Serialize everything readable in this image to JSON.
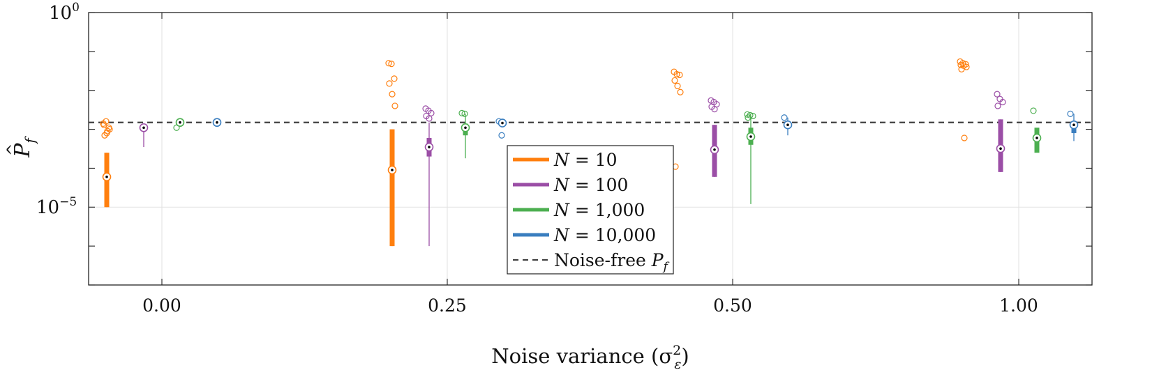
{
  "chart_data": {
    "type": "box",
    "title": "",
    "xlabel": "Noise variance (σ²ε)",
    "ylabel": "P̂f",
    "yscale": "log",
    "ylim": [
      1e-07,
      1
    ],
    "yticks": [
      "10^0",
      "10^-5"
    ],
    "categories": [
      "0.00",
      "0.25",
      "0.50",
      "1.00"
    ],
    "grid": true,
    "legend_position": "lower-center",
    "noise_free_pf": 0.0015,
    "series": [
      {
        "name": "N = 10",
        "color": "#ff7f0e",
        "groups": [
          {
            "whisker": [
              1e-05,
              0.00025
            ],
            "box": [
              1e-05,
              0.00025
            ],
            "median": 6e-05,
            "outliers": [
              0.0014,
              0.0016,
              0.0011,
              0.0013,
              0.0008,
              0.001,
              0.0007,
              0.0009
            ]
          },
          {
            "whisker": [
              1e-06,
              0.001
            ],
            "box": [
              1e-06,
              0.001
            ],
            "median": 9e-05,
            "outliers": [
              0.05,
              0.048,
              0.02,
              0.015,
              0.008,
              0.004
            ]
          },
          {
            "whisker": [],
            "box": [],
            "median": null,
            "outliers": [
              0.03,
              0.026,
              0.025,
              0.018,
              0.013,
              0.009,
              0.00011
            ]
          },
          {
            "whisker": [],
            "box": [],
            "median": null,
            "outliers": [
              0.055,
              0.05,
              0.047,
              0.045,
              0.043,
              0.04,
              0.035,
              0.0006
            ]
          }
        ]
      },
      {
        "name": "N = 100",
        "color": "#9b4ea6",
        "groups": [
          {
            "whisker": [
              0.00035,
              0.0012
            ],
            "box": [],
            "median": 0.0011,
            "outliers": []
          },
          {
            "whisker": [
              1e-06,
              0.0015
            ],
            "box": [
              0.0002,
              0.0006
            ],
            "median": 0.00035,
            "outliers": [
              0.0034,
              0.003,
              0.0026,
              0.0022,
              0.0019
            ]
          },
          {
            "whisker": [
              6e-05,
              0.0013
            ],
            "box": [
              6e-05,
              0.0013
            ],
            "median": 0.0003,
            "outliers": [
              0.0055,
              0.005,
              0.0044,
              0.0038,
              0.0033
            ]
          },
          {
            "whisker": [
              8e-05,
              0.0018
            ],
            "box": [
              8e-05,
              0.0018
            ],
            "median": 0.00032,
            "outliers": [
              0.008,
              0.006,
              0.005,
              0.004
            ]
          }
        ]
      },
      {
        "name": "N = 1,000",
        "color": "#4caf50",
        "groups": [
          {
            "whisker": [],
            "box": [],
            "median": 0.0015,
            "outliers": [
              0.0011
            ]
          },
          {
            "whisker": [
              0.00018,
              0.0025
            ],
            "box": [
              0.0007,
              0.0014
            ],
            "median": 0.0011,
            "outliers": [
              0.0026,
              0.0025
            ]
          },
          {
            "whisker": [
              1.2e-05,
              0.0023
            ],
            "box": [
              0.0004,
              0.0011
            ],
            "median": 0.00065,
            "outliers": [
              0.0024,
              0.0023,
              0.0022,
              0.002
            ]
          },
          {
            "whisker": [],
            "box": [
              0.00025,
              0.0011
            ],
            "median": 0.0006,
            "outliers": [
              0.003
            ]
          }
        ]
      },
      {
        "name": "N = 10,000",
        "color": "#3a7ebf",
        "groups": [
          {
            "whisker": [],
            "box": [],
            "median": 0.0015,
            "outliers": []
          },
          {
            "whisker": [],
            "box": [],
            "median": 0.00145,
            "outliers": [
              0.0016,
              0.0007
            ]
          },
          {
            "whisker": [
              0.0007,
              0.002
            ],
            "box": [],
            "median": 0.0013,
            "outliers": [
              0.002
            ]
          },
          {
            "whisker": [
              0.0005,
              0.0025
            ],
            "box": [
              0.0008,
              0.0016
            ],
            "median": 0.0013,
            "outliers": [
              0.0025
            ]
          }
        ]
      }
    ],
    "reference_line": {
      "name": "Noise-free P_f",
      "value": 0.0015,
      "style": "dashed",
      "color": "#404040"
    }
  },
  "legend": {
    "items": [
      {
        "math_var": "N",
        "math_rest": " = 10",
        "color": "#ff7f0e",
        "style": "solid"
      },
      {
        "math_var": "N",
        "math_rest": " = 100",
        "color": "#9b4ea6",
        "style": "solid"
      },
      {
        "math_var": "N",
        "math_rest": " = 1,000",
        "color": "#4caf50",
        "style": "solid"
      },
      {
        "math_var": "N",
        "math_rest": " = 10,000",
        "color": "#3a7ebf",
        "style": "solid"
      },
      {
        "text": "Noise-free ",
        "math_var": "P",
        "math_sub": "f",
        "color": "#404040",
        "style": "dashed"
      }
    ]
  },
  "axis_labels": {
    "x_prefix": "Noise variance (σ",
    "x_sup": "2",
    "x_sub": "ε",
    "x_suffix": ")",
    "y_main": "P",
    "y_hat": "^",
    "y_sub": "f",
    "ytick_base": "10",
    "ytick_exp_top": "0",
    "ytick_exp_bottom": "−5"
  }
}
